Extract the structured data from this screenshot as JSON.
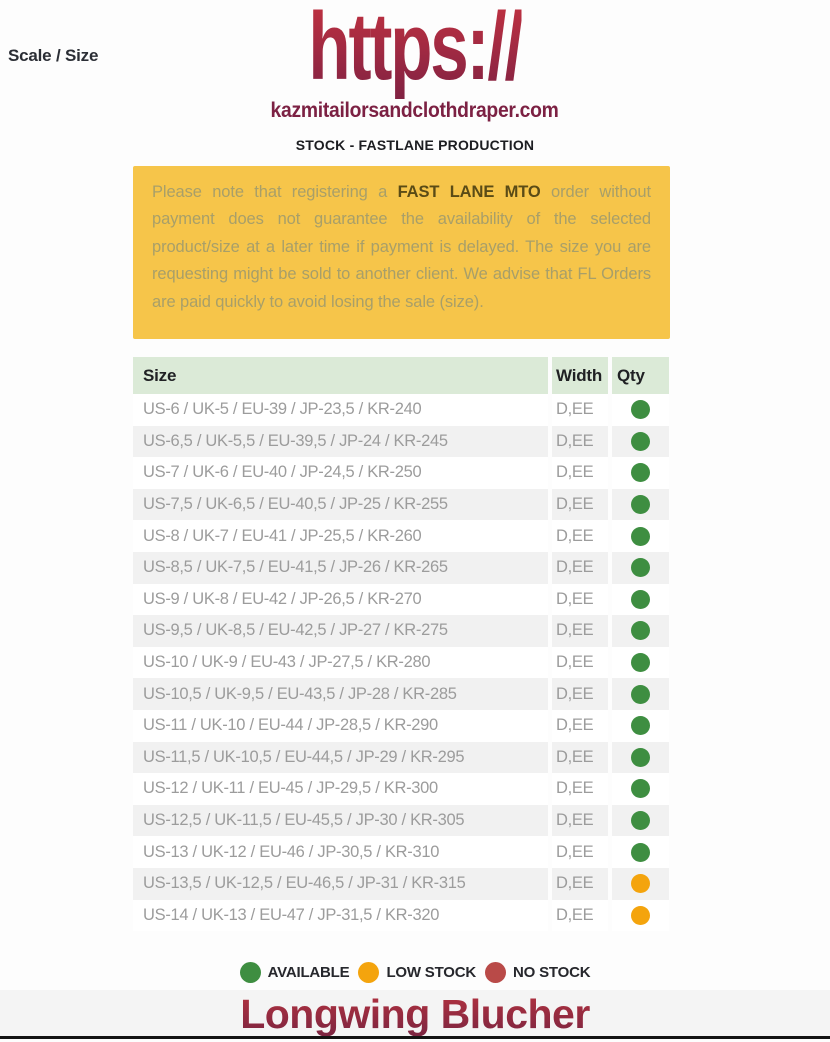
{
  "page": {
    "scale_size_label": "Scale / Size",
    "logo_text": "https://",
    "logo_domain": "kazmitailorsandclothdraper.com",
    "subtitle": "STOCK - FASTLANE PRODUCTION",
    "product_title": "Longwing Blucher"
  },
  "notice": {
    "prefix": "Please note that registering a ",
    "highlight": "FAST LANE MTO",
    "suffix": " order without payment does not guarantee the availability of the selected product/size at a later time if payment is delayed. The size you are requesting might be sold to another client. We advise that FL Orders are paid quickly to avoid losing the sale (size)."
  },
  "table": {
    "headers": [
      "Size",
      "Width",
      "Qty"
    ],
    "rows": [
      {
        "size": "US-6 / UK-5 / EU-39 / JP-23,5 / KR-240",
        "width": "D,EE",
        "stock": "available"
      },
      {
        "size": "US-6,5 / UK-5,5 / EU-39,5 / JP-24 / KR-245",
        "width": "D,EE",
        "stock": "available"
      },
      {
        "size": "US-7 / UK-6 / EU-40 / JP-24,5 / KR-250",
        "width": "D,EE",
        "stock": "available"
      },
      {
        "size": "US-7,5 / UK-6,5 / EU-40,5 / JP-25 / KR-255",
        "width": "D,EE",
        "stock": "available"
      },
      {
        "size": "US-8 / UK-7 / EU-41 / JP-25,5 / KR-260",
        "width": "D,EE",
        "stock": "available"
      },
      {
        "size": "US-8,5 / UK-7,5 / EU-41,5 / JP-26 / KR-265",
        "width": "D,EE",
        "stock": "available"
      },
      {
        "size": "US-9 / UK-8 / EU-42 / JP-26,5 / KR-270",
        "width": "D,EE",
        "stock": "available"
      },
      {
        "size": "US-9,5 / UK-8,5 / EU-42,5 / JP-27 / KR-275",
        "width": "D,EE",
        "stock": "available"
      },
      {
        "size": "US-10 / UK-9 / EU-43 / JP-27,5 / KR-280",
        "width": "D,EE",
        "stock": "available"
      },
      {
        "size": "US-10,5 / UK-9,5 / EU-43,5 / JP-28 / KR-285",
        "width": "D,EE",
        "stock": "available"
      },
      {
        "size": "US-11 / UK-10 / EU-44 / JP-28,5 / KR-290",
        "width": "D,EE",
        "stock": "available"
      },
      {
        "size": "US-11,5 / UK-10,5 / EU-44,5 / JP-29 / KR-295",
        "width": "D,EE",
        "stock": "available"
      },
      {
        "size": "US-12 / UK-11 / EU-45 / JP-29,5 / KR-300",
        "width": "D,EE",
        "stock": "available"
      },
      {
        "size": "US-12,5 / UK-11,5 / EU-45,5 / JP-30 / KR-305",
        "width": "D,EE",
        "stock": "available"
      },
      {
        "size": "US-13 / UK-12 / EU-46 / JP-30,5 / KR-310",
        "width": "D,EE",
        "stock": "available"
      },
      {
        "size": "US-13,5 / UK-12,5 / EU-46,5 / JP-31 / KR-315",
        "width": "D,EE",
        "stock": "low_stock"
      },
      {
        "size": "US-14 / UK-13 / EU-47 / JP-31,5 / KR-320",
        "width": "D,EE",
        "stock": "low_stock"
      }
    ]
  },
  "legend": {
    "items": [
      {
        "label": "AVAILABLE",
        "stock": "available"
      },
      {
        "label": "LOW STOCK",
        "stock": "low_stock"
      },
      {
        "label": "NO STOCK",
        "stock": "no_stock"
      }
    ]
  },
  "colors": {
    "available": "#3e8e41",
    "low_stock": "#f4a40d",
    "no_stock": "#b94a48",
    "notice_bg": "#f6c54a",
    "notice_text": "#a89f69",
    "notice_highlight": "#5a4b16",
    "table_header_bg": "#dbead7",
    "row_alt_bg": "#f1f1f1",
    "brand_gradient_top": "#c63341",
    "brand_gradient_bottom": "#7e2142"
  }
}
